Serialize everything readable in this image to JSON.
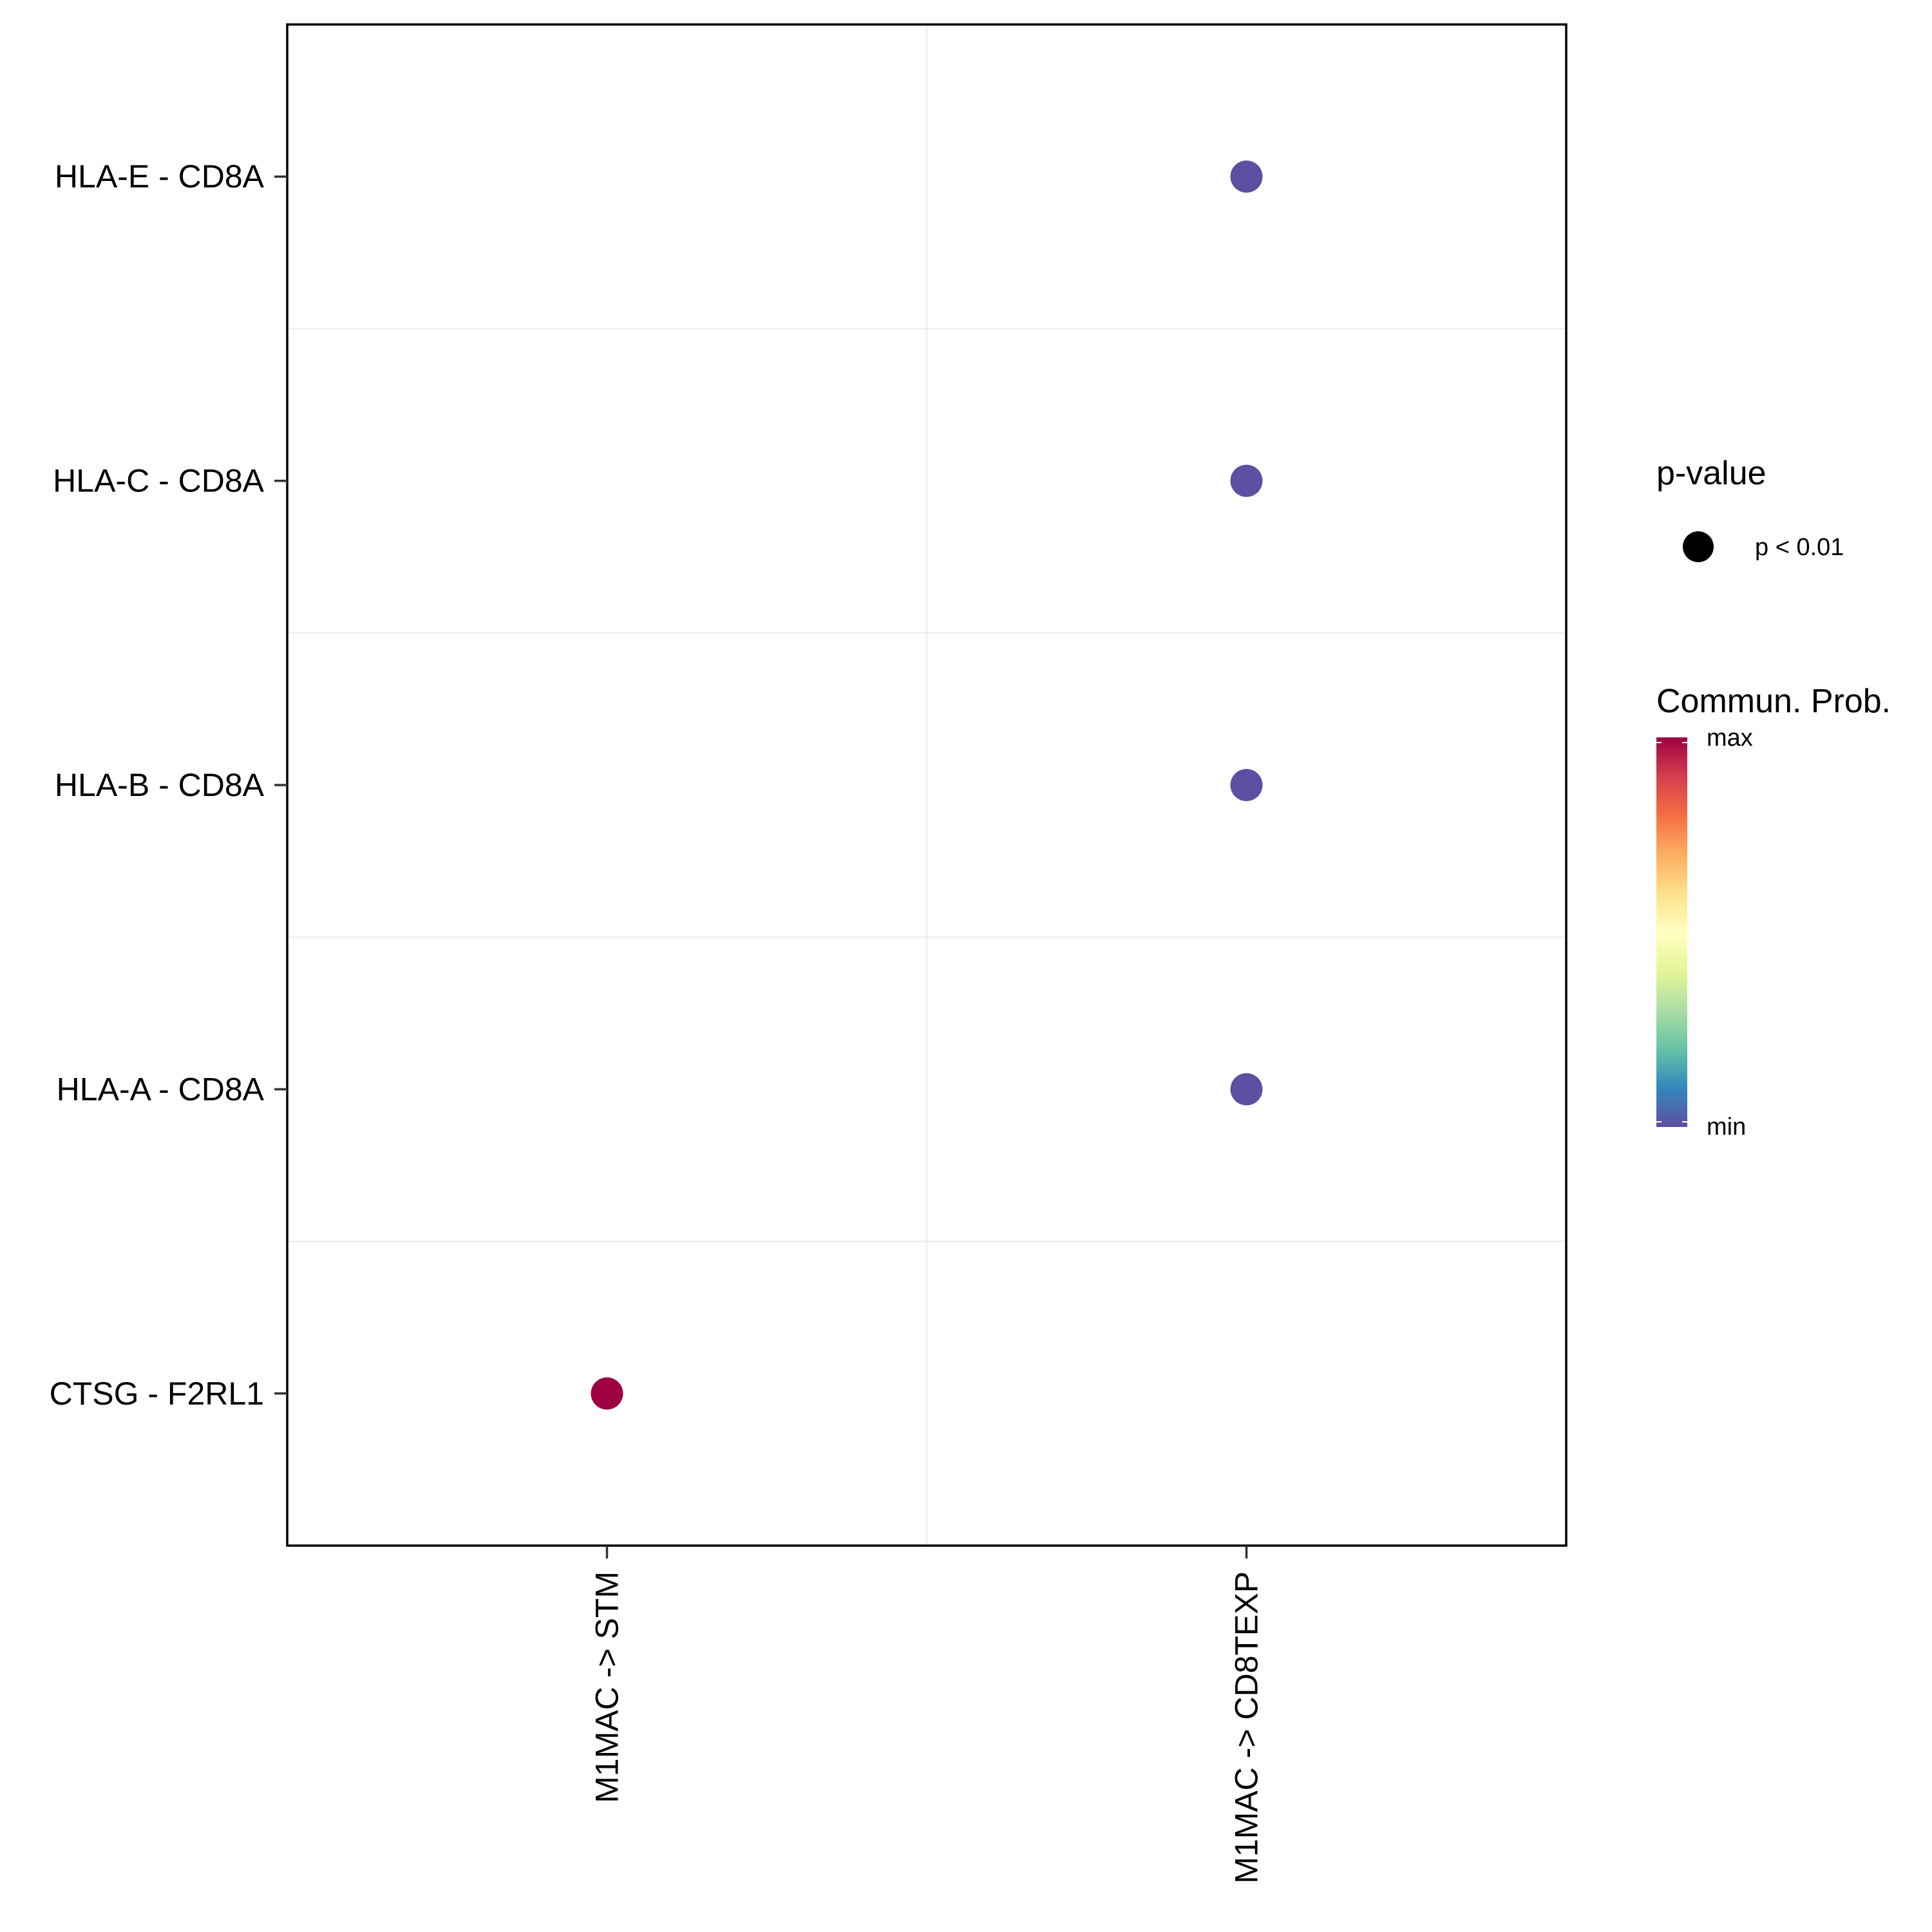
{
  "chart_data": {
    "type": "scatter",
    "subtype": "dot-plot",
    "title": "",
    "xlabel": "",
    "ylabel": "",
    "x_categories": [
      "M1MAC -> STM",
      "M1MAC -> CD8TEXP"
    ],
    "y_categories": [
      "CTSG - F2RL1",
      "HLA-A - CD8A",
      "HLA-B - CD8A",
      "HLA-C - CD8A",
      "HLA-E - CD8A"
    ],
    "points": [
      {
        "x": "M1MAC -> STM",
        "y": "CTSG - F2RL1",
        "prob": 1.0,
        "pvalue_class": "p < 0.01",
        "color": "#9E0142"
      },
      {
        "x": "M1MAC -> CD8TEXP",
        "y": "HLA-A - CD8A",
        "prob": 0.0,
        "pvalue_class": "p < 0.01",
        "color": "#5E4FA2"
      },
      {
        "x": "M1MAC -> CD8TEXP",
        "y": "HLA-B - CD8A",
        "prob": 0.0,
        "pvalue_class": "p < 0.01",
        "color": "#5E4FA2"
      },
      {
        "x": "M1MAC -> CD8TEXP",
        "y": "HLA-C - CD8A",
        "prob": 0.0,
        "pvalue_class": "p < 0.01",
        "color": "#5E4FA2"
      },
      {
        "x": "M1MAC -> CD8TEXP",
        "y": "HLA-E - CD8A",
        "prob": 0.0,
        "pvalue_class": "p < 0.01",
        "color": "#5E4FA2"
      }
    ],
    "legend": {
      "size_title": "p-value",
      "size_entries": [
        {
          "label": "p < 0.01",
          "color": "#000000"
        }
      ],
      "color_title": "Commun. Prob.",
      "color_max_label": "max",
      "color_min_label": "min",
      "colorscale": [
        "#5E4FA2",
        "#3288BD",
        "#66C2A5",
        "#ABDDA4",
        "#E6F598",
        "#FFFFBF",
        "#FEE08B",
        "#FDAE61",
        "#F46D43",
        "#D53E4F",
        "#9E0142"
      ]
    },
    "grid": true,
    "legend_position": "right"
  }
}
